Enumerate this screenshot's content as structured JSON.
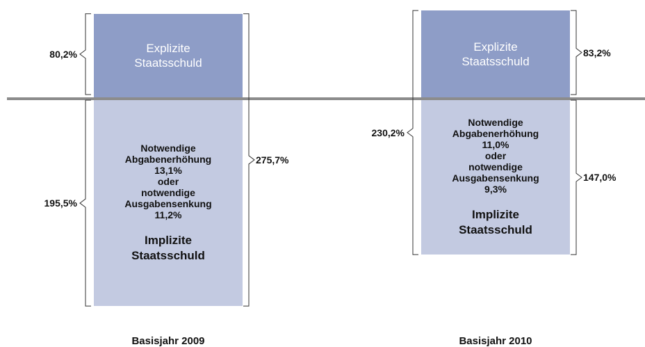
{
  "chart_data": {
    "type": "stacked_bar",
    "categories": [
      "Basisjahr 2009",
      "Basisjahr 2010"
    ],
    "series": [
      {
        "name": "Explizite Staatsschuld",
        "color": "#8e9dc7",
        "values": [
          80.2,
          83.2
        ],
        "value_labels": [
          "80,2%",
          "83,2%"
        ]
      },
      {
        "name": "Implizite Staatsschuld",
        "color": "#c3cae1",
        "values": [
          195.5,
          147.0
        ],
        "value_labels": [
          "195,5%",
          "147,0%"
        ]
      }
    ],
    "totals": [
      275.7,
      230.2
    ],
    "total_labels": [
      "275,7%",
      "230,2%"
    ],
    "notes": [
      {
        "tax_label": "Notwendige Abgabenerhöhung",
        "tax_value": 13.1,
        "tax_value_label": "13,1%",
        "or": "oder",
        "spend_label": "notwendige Ausgabensenkung",
        "spend_value": 11.2,
        "spend_value_label": "11,2%"
      },
      {
        "tax_label": "Notwendige Abgabenerhöhung",
        "tax_value": 11.0,
        "tax_value_label": "11,0%",
        "or": "oder",
        "spend_label": "notwendige Ausgabensenkung",
        "spend_value": 9.3,
        "spend_value_label": "9,3%"
      }
    ]
  }
}
